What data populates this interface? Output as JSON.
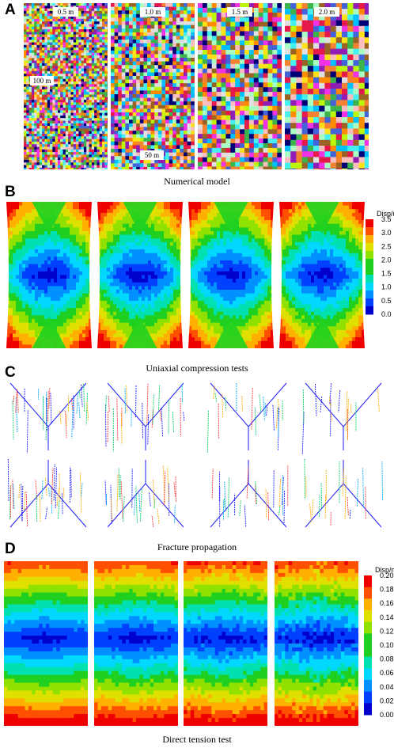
{
  "panels": {
    "A": {
      "letter": "A",
      "caption": "Numerical model",
      "models": [
        {
          "size_label": "0.5 m",
          "cell": 0.5
        },
        {
          "size_label": "1.0 m",
          "cell": 1.0
        },
        {
          "size_label": "1.5 m",
          "cell": 1.5
        },
        {
          "size_label": "2.0 m",
          "cell": 2.0
        }
      ],
      "height_label": "100 m",
      "width_label": "50 m",
      "palette": [
        "#e6194b",
        "#3cb44b",
        "#4363d8",
        "#f58231",
        "#911eb4",
        "#46f0f0",
        "#f032e6",
        "#bcf60c",
        "#fabebe",
        "#ffe119",
        "#9a6324",
        "#aaffc3",
        "#e0e0e0",
        "#000075",
        "#ff8c00",
        "#00c0ff"
      ]
    },
    "B": {
      "letter": "B",
      "caption": "Uniaxial compression tests",
      "colorbar_title": "Disp/m",
      "colorbar_ticks": [
        "3.5",
        "3.0",
        "2.5",
        "2.0",
        "1.5",
        "1.0",
        "0.5",
        "0.0"
      ]
    },
    "C": {
      "letter": "C",
      "caption": "Fracture propagation"
    },
    "D": {
      "letter": "D",
      "caption": "Direct tension test",
      "colorbar_title": "Disp/m",
      "colorbar_ticks": [
        "0.20",
        "0.18",
        "0.16",
        "0.14",
        "0.12",
        "0.10",
        "0.08",
        "0.06",
        "0.04",
        "0.02",
        "0.00"
      ]
    }
  },
  "colors": {
    "contour": [
      "#0000cc",
      "#0040ff",
      "#0090ff",
      "#00d8ff",
      "#00e0b0",
      "#20d020",
      "#90e000",
      "#e0e000",
      "#ffb000",
      "#ff5000",
      "#ee0000"
    ],
    "fracture": [
      "#1a1aff",
      "#00aaff",
      "#00cc66",
      "#ff3333",
      "#ffaa00"
    ]
  }
}
